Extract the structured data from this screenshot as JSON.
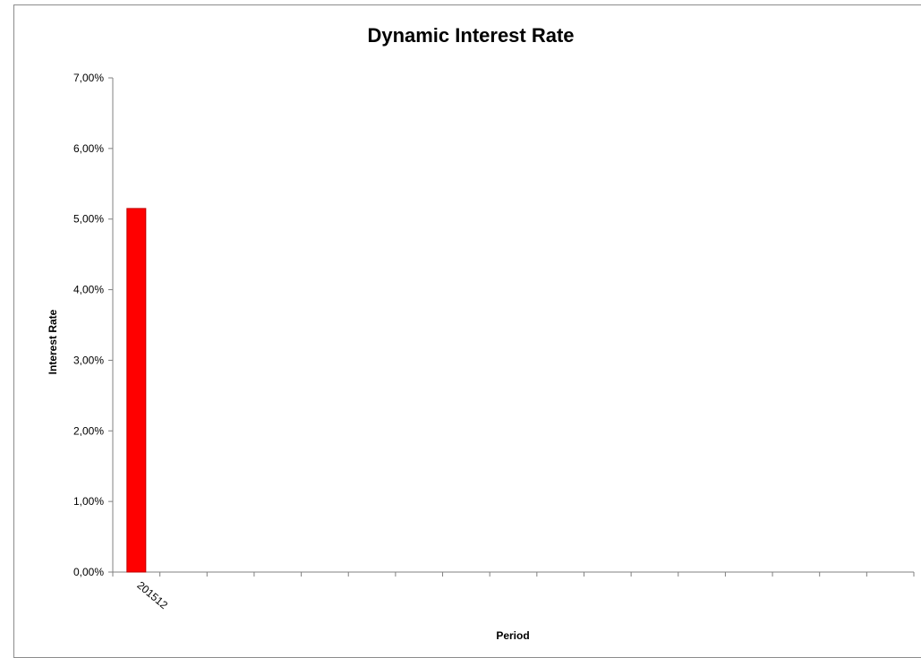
{
  "chart_data": {
    "type": "bar",
    "title": "Dynamic Interest Rate",
    "xlabel": "Period",
    "ylabel": "Interest Rate",
    "categories": [
      "201512",
      "",
      "",
      "",
      "",
      "",
      "",
      "",
      "",
      "",
      "",
      "",
      "",
      "",
      "",
      "",
      ""
    ],
    "values": [
      5.15,
      null,
      null,
      null,
      null,
      null,
      null,
      null,
      null,
      null,
      null,
      null,
      null,
      null,
      null,
      null,
      null
    ],
    "ylim": [
      0,
      7
    ],
    "yticks": [
      "0,00%",
      "1,00%",
      "2,00%",
      "3,00%",
      "4,00%",
      "5,00%",
      "6,00%",
      "7,00%"
    ],
    "grid": false,
    "legend": "none",
    "bar_color": "#ff0000",
    "bar_edge_color": "#c00000"
  }
}
